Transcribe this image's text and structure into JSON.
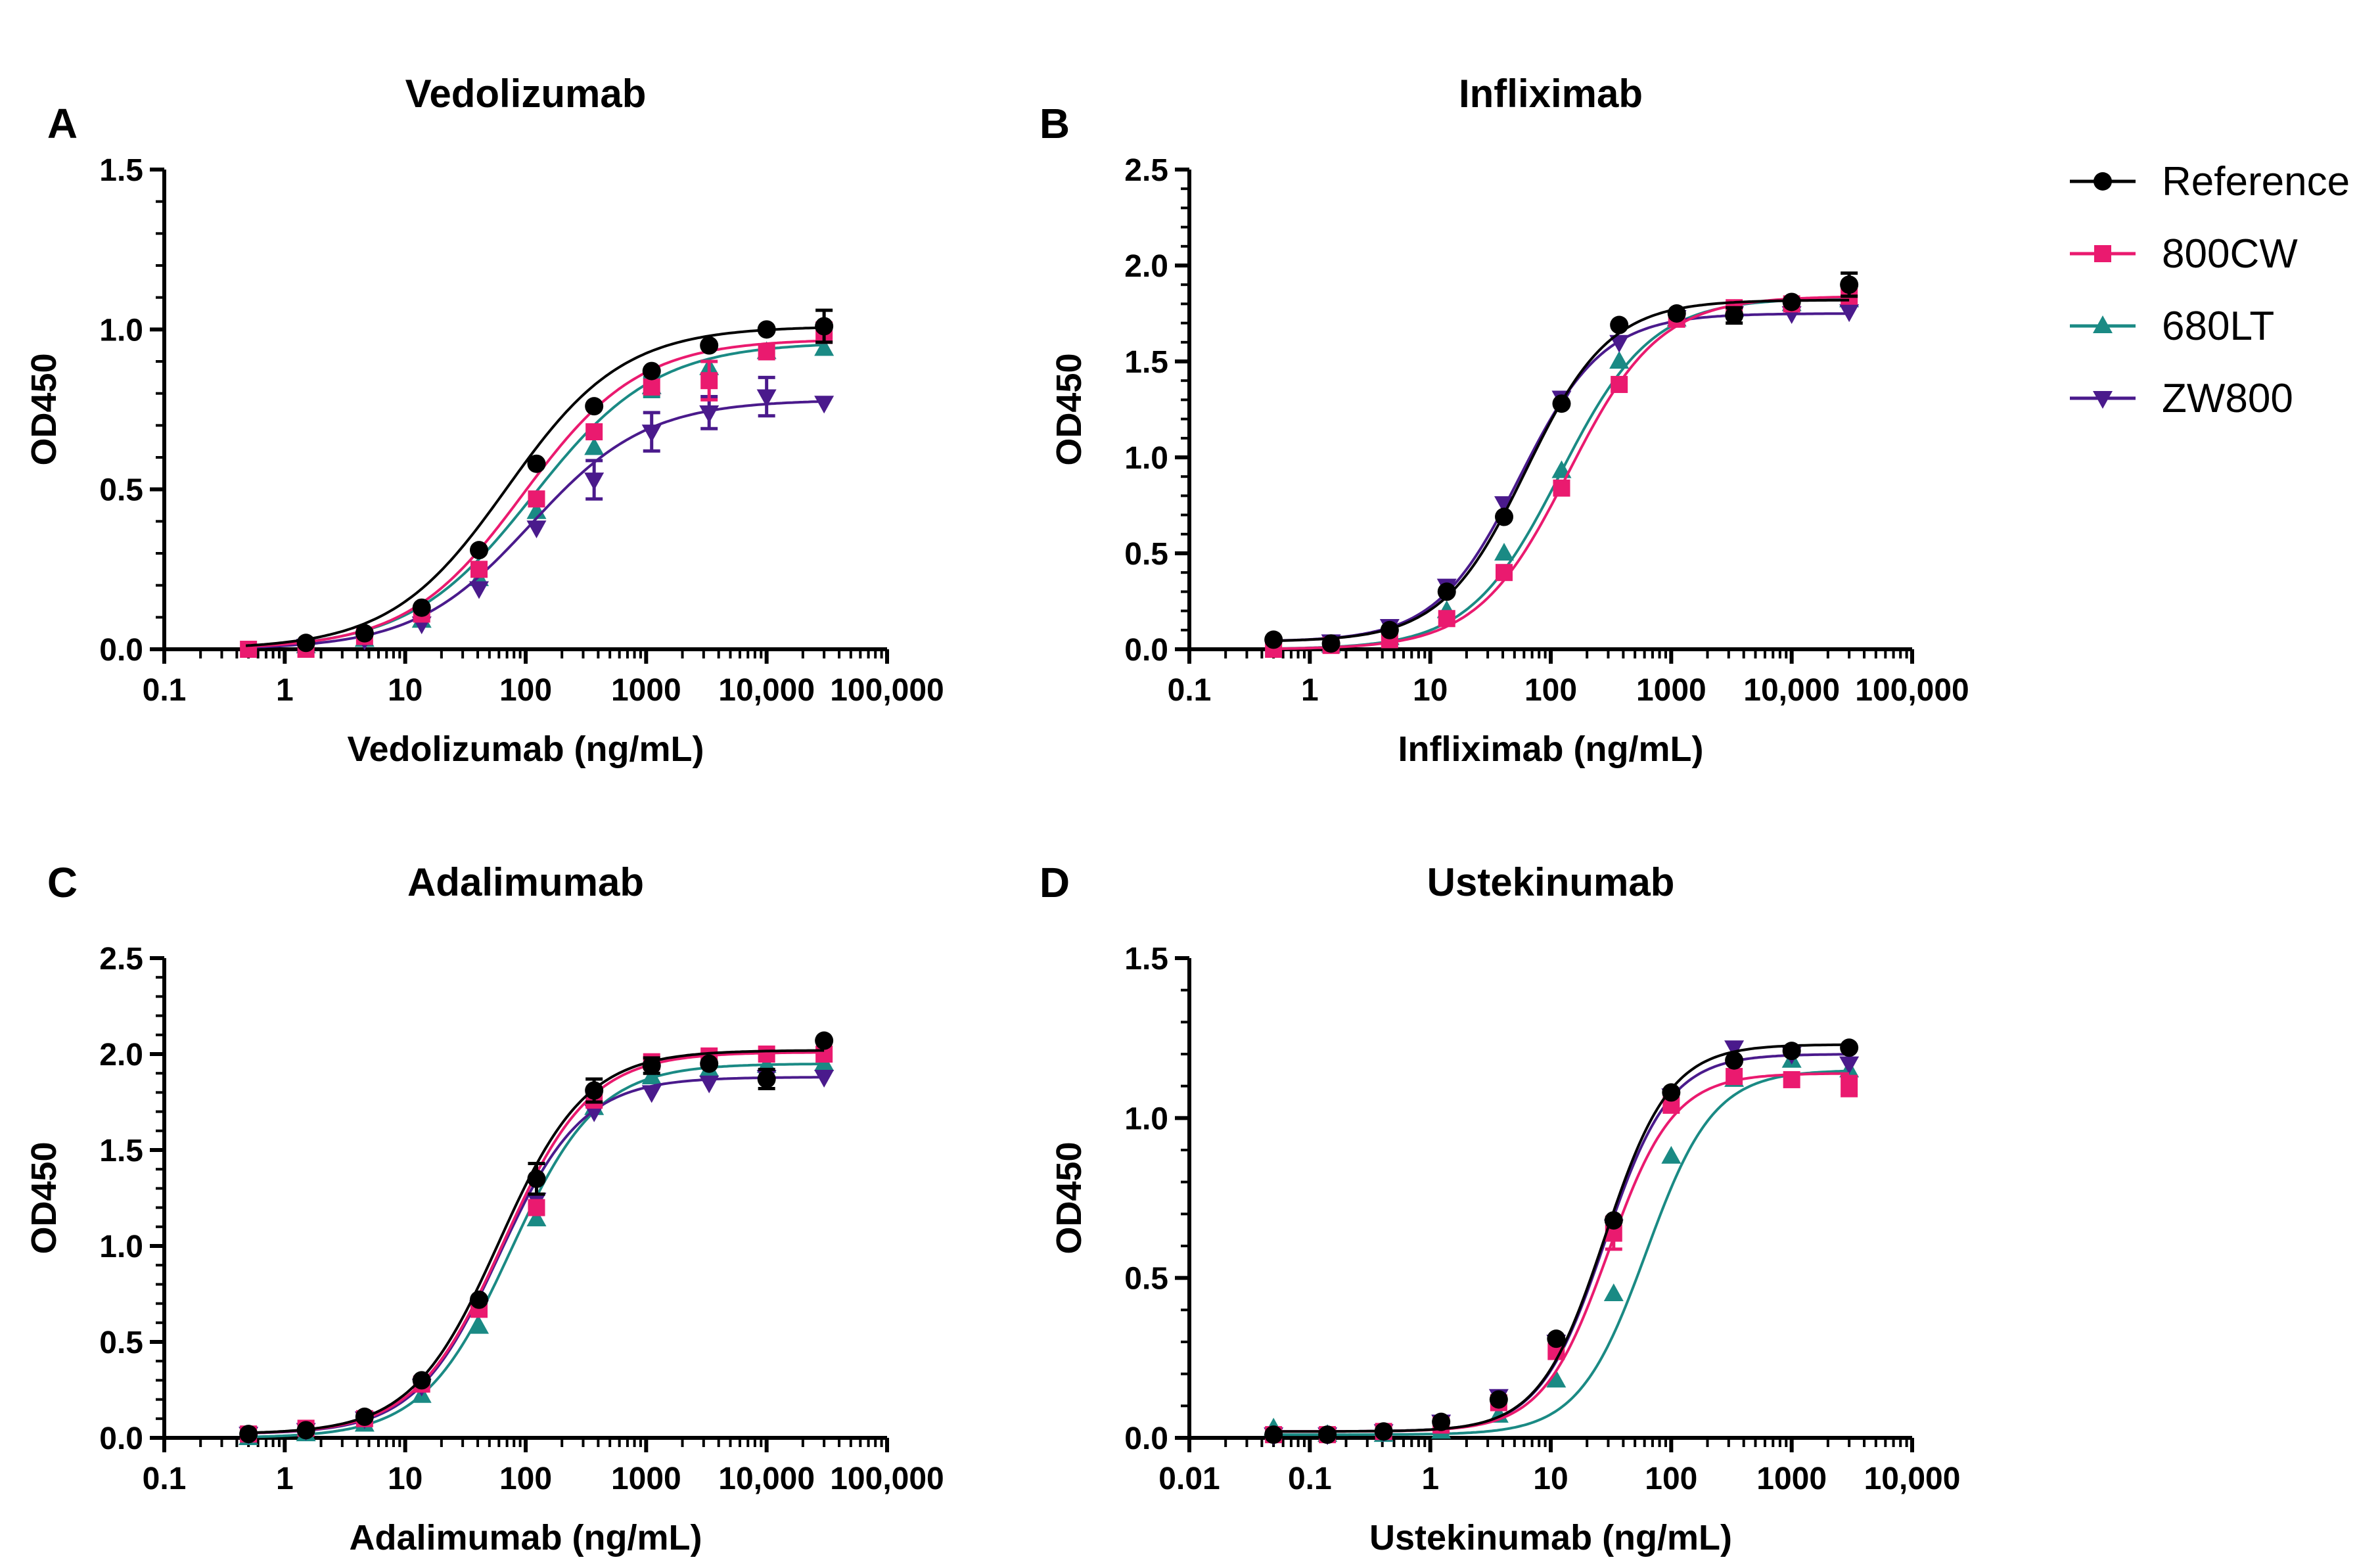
{
  "colors": {
    "Reference": "#000000",
    "800CW": "#ea1a6f",
    "680LT": "#1a8a84",
    "ZW800": "#4a1a8c"
  },
  "legend": {
    "position": "top-right",
    "entries": [
      {
        "name": "Reference",
        "marker": "circle"
      },
      {
        "name": "800CW",
        "marker": "square"
      },
      {
        "name": "680LT",
        "marker": "triangle-up"
      },
      {
        "name": "ZW800",
        "marker": "triangle-down"
      }
    ]
  },
  "chart_data": [
    {
      "panel": "A",
      "type": "scatter",
      "title": "Vedolizumab",
      "xlabel": "Vedolizumab (ng/mL)",
      "ylabel": "OD450",
      "xscale": "log",
      "xlim": [
        0.1,
        100000
      ],
      "xticks": [
        0.1,
        1,
        10,
        100,
        1000,
        10000,
        100000
      ],
      "xticklabels": [
        "0.1",
        "1",
        "10",
        "100",
        "1000",
        "10,000",
        "100,000"
      ],
      "ylim": [
        0,
        1.5
      ],
      "yticks": [
        0,
        0.5,
        1.0,
        1.5
      ],
      "yticklabels": [
        "0.0",
        "0.5",
        "1.0",
        "1.5"
      ],
      "x": [
        0.5,
        1.5,
        4.6,
        13.7,
        41,
        123,
        370,
        1111,
        3333,
        10000,
        30000
      ],
      "series": [
        {
          "name": "Reference",
          "values": [
            null,
            0.02,
            0.05,
            0.13,
            0.31,
            0.58,
            0.76,
            0.87,
            0.95,
            1.0,
            1.01
          ],
          "errors": [
            0,
            0,
            0,
            0,
            0,
            0,
            0,
            0,
            0,
            0,
            0.05
          ],
          "fit": {
            "bottom": 0.0,
            "top": 1.01,
            "ec50": 70,
            "hill": 0.9
          }
        },
        {
          "name": "800CW",
          "values": [
            0.0,
            0.0,
            0.04,
            0.11,
            0.25,
            0.47,
            0.68,
            0.82,
            0.84,
            0.93,
            0.99
          ],
          "errors": [
            0,
            0,
            0,
            0,
            0,
            0,
            0,
            0,
            0.06,
            0,
            0.03
          ],
          "fit": {
            "bottom": 0.0,
            "top": 0.97,
            "ec50": 95,
            "hill": 0.9
          }
        },
        {
          "name": "680LT",
          "values": [
            null,
            0.01,
            0.03,
            0.09,
            0.22,
            0.43,
            0.63,
            0.82,
            0.88,
            0.93,
            0.94
          ],
          "errors": [
            0,
            0,
            0,
            0,
            0,
            0,
            0,
            0.03,
            0,
            0,
            0
          ],
          "fit": {
            "bottom": 0.0,
            "top": 0.96,
            "ec50": 115,
            "hill": 0.85
          }
        },
        {
          "name": "ZW800",
          "values": [
            null,
            0.01,
            0.03,
            0.08,
            0.19,
            0.38,
            0.53,
            0.68,
            0.74,
            0.79,
            0.77
          ],
          "errors": [
            0,
            0,
            0,
            0,
            0,
            0,
            0.06,
            0.06,
            0.05,
            0.06,
            0
          ],
          "fit": {
            "bottom": 0.0,
            "top": 0.78,
            "ec50": 110,
            "hill": 0.9
          }
        }
      ]
    },
    {
      "panel": "B",
      "type": "scatter",
      "title": "Infliximab",
      "xlabel": "Infliximab (ng/mL)",
      "ylabel": "OD450",
      "xscale": "log",
      "xlim": [
        0.1,
        100000
      ],
      "xticks": [
        0.1,
        1,
        10,
        100,
        1000,
        10000,
        100000
      ],
      "xticklabels": [
        "0.1",
        "1",
        "10",
        "100",
        "1000",
        "10,000",
        "100,000"
      ],
      "ylim": [
        0,
        2.5
      ],
      "yticks": [
        0,
        0.5,
        1.0,
        1.5,
        2.0,
        2.5
      ],
      "yticklabels": [
        "0.0",
        "0.5",
        "1.0",
        "1.5",
        "2.0",
        "2.5"
      ],
      "x": [
        0.5,
        1.5,
        4.6,
        13.7,
        41,
        123,
        370,
        1111,
        3333,
        10000,
        30000
      ],
      "series": [
        {
          "name": "Reference",
          "values": [
            0.05,
            0.03,
            0.1,
            0.3,
            0.69,
            1.28,
            1.69,
            1.75,
            1.74,
            1.81,
            1.9
          ],
          "errors": [
            0,
            0,
            0,
            0,
            0,
            0,
            0,
            0,
            0.04,
            0,
            0.06
          ],
          "fit": {
            "bottom": 0.04,
            "top": 1.82,
            "ec50": 62,
            "hill": 1.25
          }
        },
        {
          "name": "800CW",
          "values": [
            0.0,
            0.02,
            0.05,
            0.16,
            0.4,
            0.84,
            1.38,
            1.72,
            1.78,
            1.8,
            1.84
          ],
          "errors": [
            0,
            0,
            0,
            0,
            0,
            0,
            0,
            0,
            0,
            0,
            0
          ],
          "fit": {
            "bottom": 0.0,
            "top": 1.84,
            "ec50": 140,
            "hill": 1.15
          }
        },
        {
          "name": "680LT",
          "values": [
            null,
            0.02,
            0.06,
            0.2,
            0.5,
            0.93,
            1.5,
            1.72,
            1.77,
            1.8,
            1.82
          ],
          "errors": [
            0,
            0,
            0,
            0,
            0,
            0,
            0,
            0,
            0,
            0,
            0
          ],
          "fit": {
            "bottom": 0.0,
            "top": 1.83,
            "ec50": 120,
            "hill": 1.15
          }
        },
        {
          "name": "ZW800",
          "values": [
            null,
            0.04,
            0.12,
            0.33,
            0.76,
            1.31,
            1.6,
            1.73,
            1.75,
            1.75,
            1.76
          ],
          "errors": [
            0,
            0,
            0,
            0,
            0,
            0,
            0,
            0,
            0,
            0,
            0
          ],
          "fit": {
            "bottom": 0.04,
            "top": 1.75,
            "ec50": 55,
            "hill": 1.25
          }
        }
      ]
    },
    {
      "panel": "C",
      "type": "scatter",
      "title": "Adalimumab",
      "xlabel": "Adalimumab (ng/mL)",
      "ylabel": "OD450",
      "xscale": "log",
      "xlim": [
        0.1,
        100000
      ],
      "xticks": [
        0.1,
        1,
        10,
        100,
        1000,
        10000,
        100000
      ],
      "xticklabels": [
        "0.1",
        "1",
        "10",
        "100",
        "1000",
        "10,000",
        "100,000"
      ],
      "ylim": [
        0,
        2.5
      ],
      "yticks": [
        0,
        0.5,
        1.0,
        1.5,
        2.0,
        2.5
      ],
      "yticklabels": [
        "0.0",
        "0.5",
        "1.0",
        "1.5",
        "2.0",
        "2.5"
      ],
      "x": [
        0.5,
        1.5,
        4.6,
        13.7,
        41,
        123,
        370,
        1111,
        3333,
        10000,
        30000
      ],
      "series": [
        {
          "name": "Reference",
          "values": [
            0.02,
            0.04,
            0.11,
            0.3,
            0.72,
            1.35,
            1.81,
            1.94,
            1.95,
            1.87,
            2.07
          ],
          "errors": [
            0,
            0,
            0,
            0,
            0,
            0.08,
            0.06,
            0.04,
            0,
            0.05,
            0
          ],
          "fit": {
            "bottom": 0.02,
            "top": 2.02,
            "ec50": 60,
            "hill": 1.2
          }
        },
        {
          "name": "800CW",
          "values": [
            0.02,
            0.05,
            0.1,
            0.28,
            0.67,
            1.2,
            1.76,
            1.96,
            1.99,
            2.0,
            2.0
          ],
          "errors": [
            0,
            0,
            0,
            0,
            0,
            0,
            0,
            0,
            0,
            0,
            0
          ],
          "fit": {
            "bottom": 0.02,
            "top": 2.01,
            "ec50": 65,
            "hill": 1.2
          }
        },
        {
          "name": "680LT",
          "values": [
            0.0,
            0.02,
            0.07,
            0.22,
            0.58,
            1.14,
            1.72,
            1.88,
            1.92,
            1.94,
            1.95
          ],
          "errors": [
            0,
            0,
            0,
            0,
            0,
            0,
            0,
            0,
            0,
            0,
            0
          ],
          "fit": {
            "bottom": 0.0,
            "top": 1.95,
            "ec50": 75,
            "hill": 1.2
          }
        },
        {
          "name": "ZW800",
          "values": [
            0.02,
            0.04,
            0.1,
            0.27,
            0.68,
            1.24,
            1.7,
            1.8,
            1.85,
            1.88,
            1.88
          ],
          "errors": [
            0,
            0,
            0,
            0,
            0,
            0,
            0,
            0,
            0,
            0,
            0
          ],
          "fit": {
            "bottom": 0.02,
            "top": 1.88,
            "ec50": 60,
            "hill": 1.25
          }
        }
      ]
    },
    {
      "panel": "D",
      "type": "scatter",
      "title": "Ustekinumab",
      "xlabel": "Ustekinumab (ng/mL)",
      "ylabel": "OD450",
      "xscale": "log",
      "xlim": [
        0.01,
        10000
      ],
      "xticks": [
        0.01,
        0.1,
        1,
        10,
        100,
        1000,
        10000
      ],
      "xticklabels": [
        "0.01",
        "0.1",
        "1",
        "10",
        "100",
        "1000",
        "10,000"
      ],
      "ylim": [
        0,
        1.5
      ],
      "yticks": [
        0,
        0.5,
        1.0,
        1.5
      ],
      "yticklabels": [
        "0.0",
        "0.5",
        "1.0",
        "1.5"
      ],
      "x": [
        0.05,
        0.14,
        0.41,
        1.23,
        3.7,
        11.1,
        33.3,
        100,
        333,
        1000,
        3000
      ],
      "series": [
        {
          "name": "Reference",
          "values": [
            0.01,
            0.01,
            0.02,
            0.05,
            0.12,
            0.31,
            0.68,
            1.08,
            1.18,
            1.21,
            1.22
          ],
          "errors": [
            0,
            0,
            0,
            0,
            0,
            0,
            0,
            0,
            0,
            0,
            0
          ],
          "fit": {
            "bottom": 0.02,
            "top": 1.23,
            "ec50": 28,
            "hill": 1.6
          }
        },
        {
          "name": "800CW",
          "values": [
            0.01,
            0.01,
            0.02,
            0.04,
            0.11,
            0.27,
            0.64,
            1.04,
            1.13,
            1.12,
            1.1
          ],
          "errors": [
            0,
            0,
            0,
            0,
            0,
            0,
            0.05,
            0,
            0,
            0,
            0.03
          ],
          "fit": {
            "bottom": 0.02,
            "top": 1.14,
            "ec50": 30,
            "hill": 1.6
          }
        },
        {
          "name": "680LT",
          "values": [
            0.03,
            0.01,
            0.01,
            0.02,
            0.07,
            0.18,
            0.45,
            0.88,
            1.12,
            1.18,
            1.15
          ],
          "errors": [
            0,
            0,
            0,
            0,
            0,
            0,
            0,
            0,
            0,
            0,
            0
          ],
          "fit": {
            "bottom": 0.01,
            "top": 1.15,
            "ec50": 62,
            "hill": 1.55
          }
        },
        {
          "name": "ZW800",
          "values": [
            0.01,
            0.01,
            0.02,
            0.05,
            0.13,
            0.3,
            0.66,
            1.07,
            1.22,
            1.2,
            1.17
          ],
          "errors": [
            0,
            0,
            0,
            0,
            0,
            0,
            0,
            0,
            0,
            0,
            0
          ],
          "fit": {
            "bottom": 0.02,
            "top": 1.2,
            "ec50": 28,
            "hill": 1.6
          }
        }
      ]
    }
  ]
}
